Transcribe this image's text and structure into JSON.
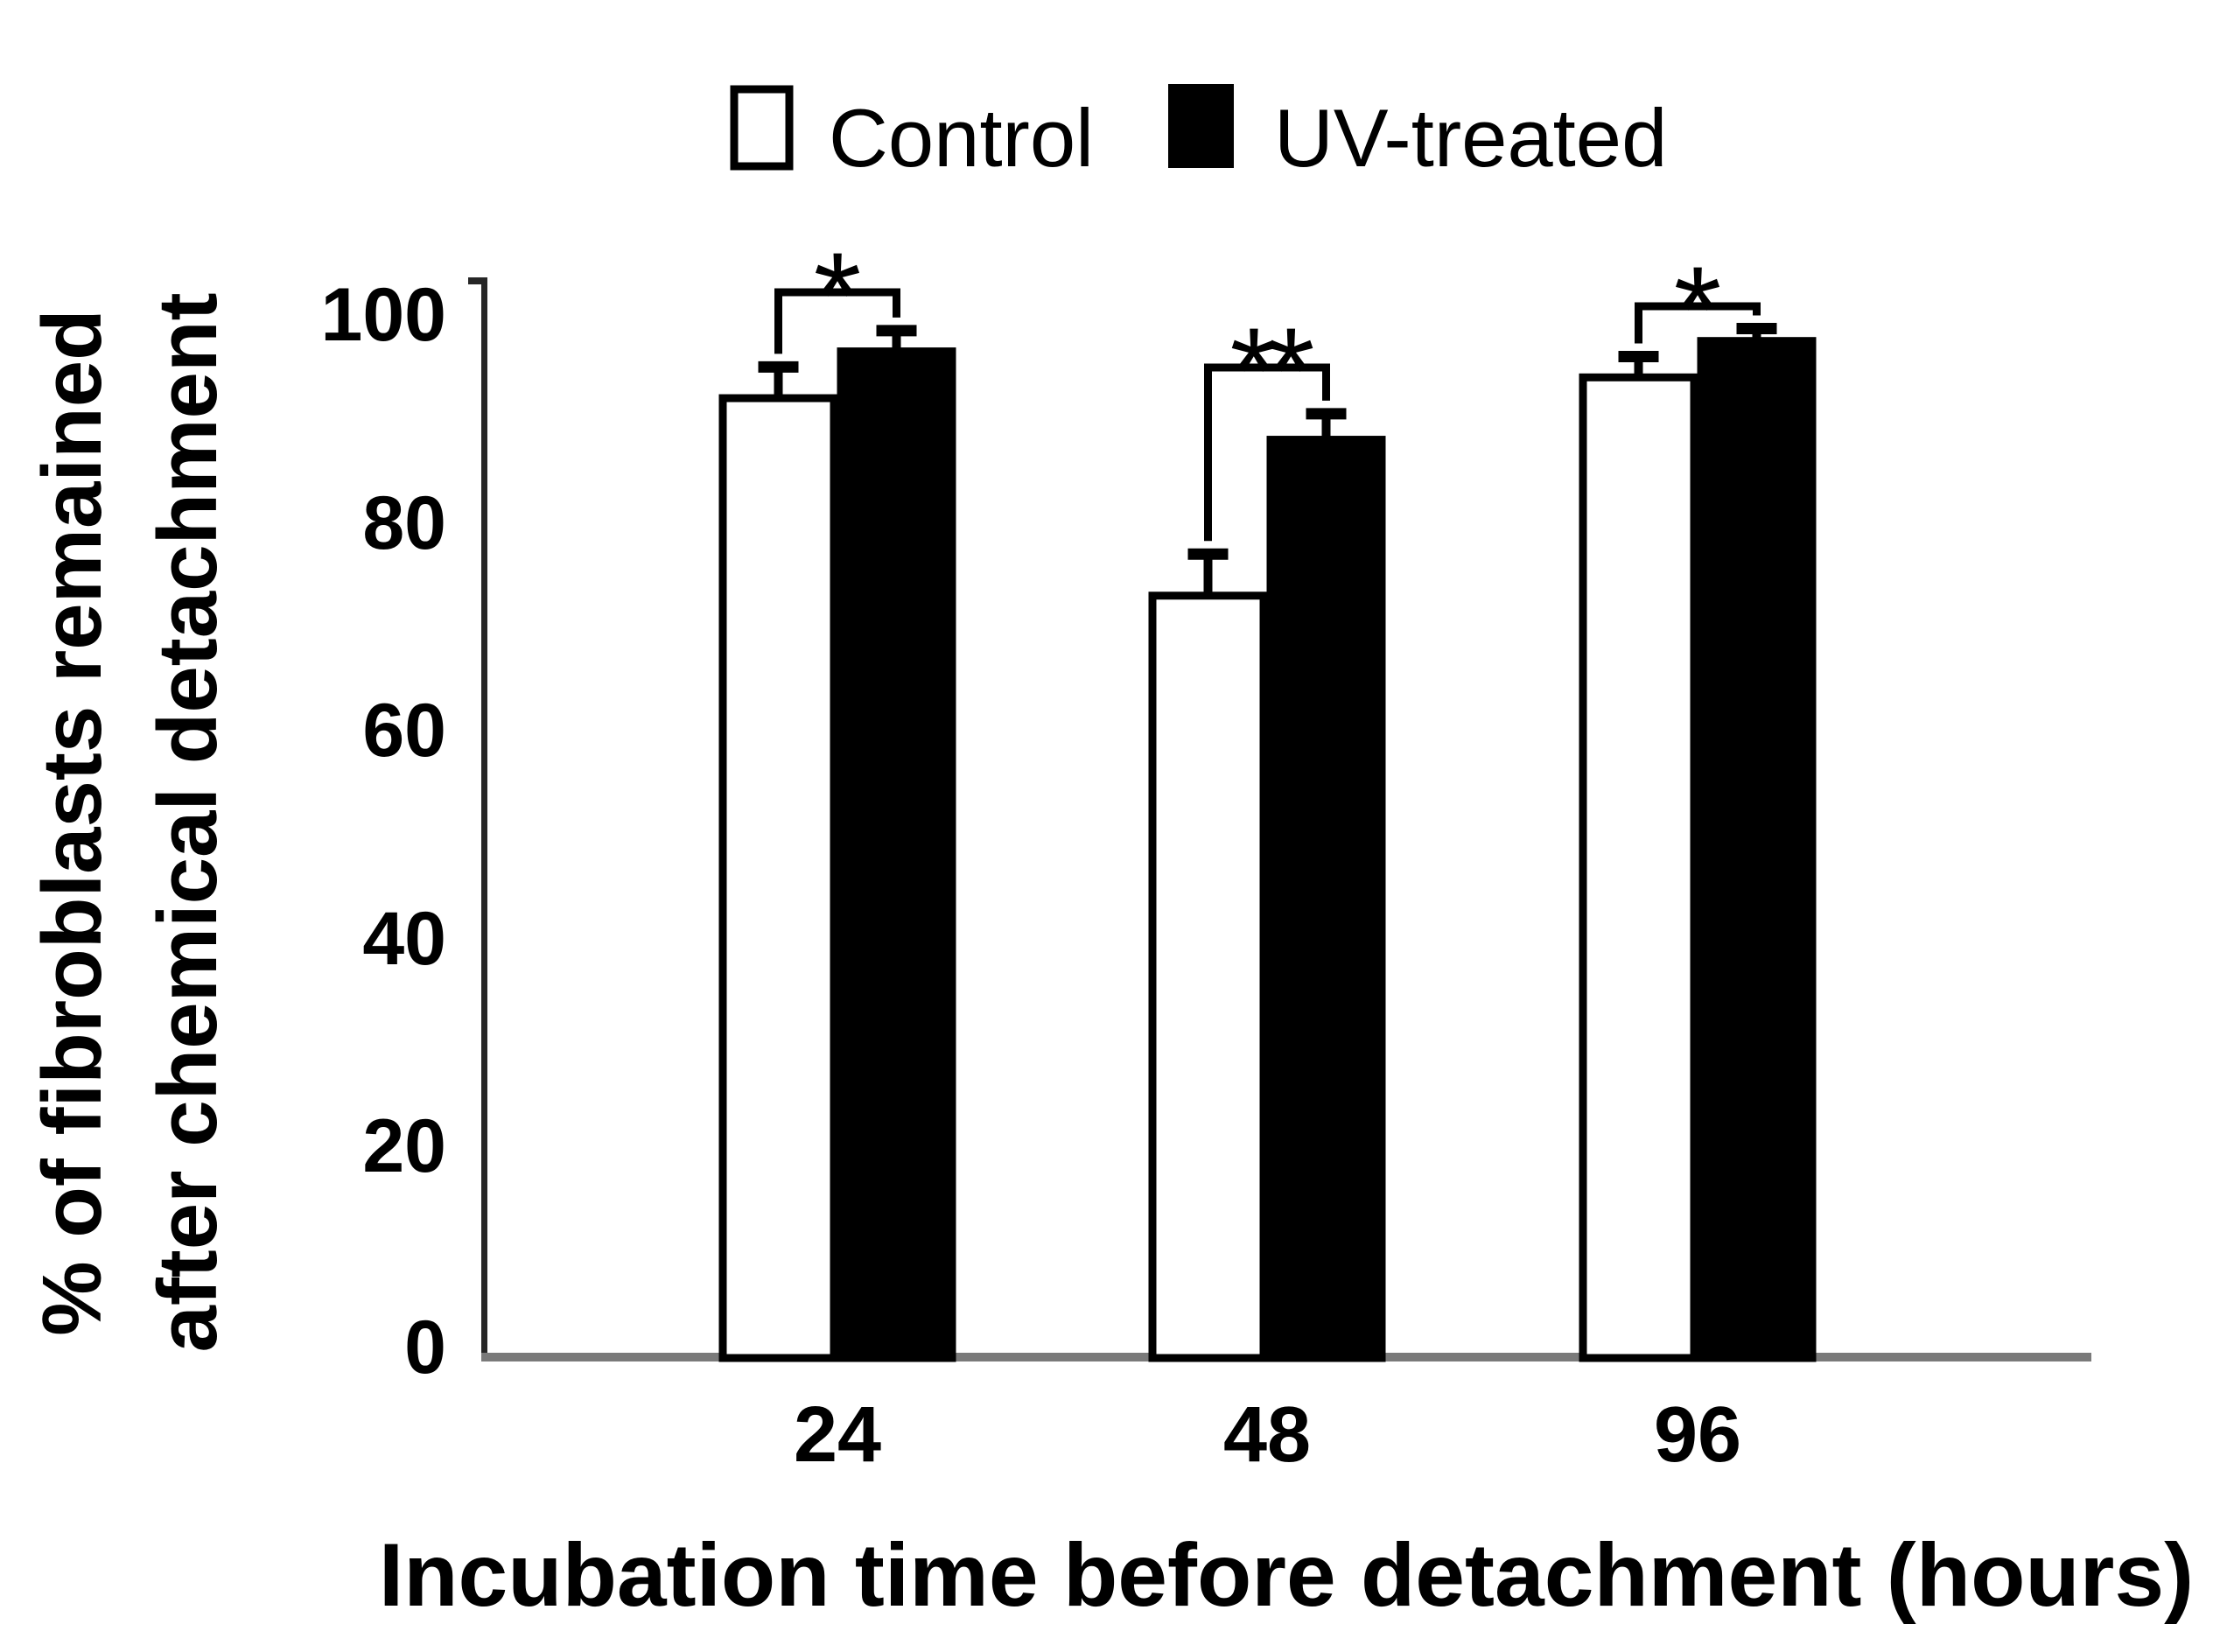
{
  "legend": {
    "items": [
      {
        "label": "Control",
        "swatch": "open-square",
        "fill": "#ffffff"
      },
      {
        "label": "UV-treated",
        "swatch": "filled-square",
        "fill": "#000000"
      }
    ]
  },
  "y_axis": {
    "title_line1": "% of fibroblasts remained",
    "title_line2": "after chemical detachment",
    "ticks": [
      "100",
      "80",
      "60",
      "40",
      "20",
      "0"
    ]
  },
  "x_axis": {
    "title": "Incubation time before detachment (hours)",
    "ticks": [
      "24",
      "48",
      "96"
    ]
  },
  "colors": {
    "background": "#ffffff",
    "bar_stroke": "#000000",
    "control_fill": "#ffffff",
    "uv_fill": "#000000",
    "axis_line": "#262626",
    "baseline": "#7a7a7a"
  },
  "chart_data": {
    "type": "bar",
    "categories": [
      "24",
      "48",
      "96"
    ],
    "series": [
      {
        "name": "Control",
        "values": [
          92,
          73,
          94
        ],
        "errors_plus": [
          3,
          4,
          2
        ],
        "fill": "#ffffff"
      },
      {
        "name": "UV-treated",
        "values": [
          96.5,
          88,
          97.5
        ],
        "errors_plus": [
          2,
          2.5,
          1.2
        ],
        "fill": "#000000"
      }
    ],
    "significance": [
      {
        "category": "24",
        "label": "*"
      },
      {
        "category": "48",
        "label": "**"
      },
      {
        "category": "96",
        "label": "*"
      }
    ],
    "title": "",
    "xlabel": "Incubation time before detachment (hours)",
    "ylabel": "% of fibroblasts remained after chemical detachment",
    "ylim": [
      0,
      100
    ],
    "grid": false,
    "legend_position": "top-center",
    "error_bars": "upper-only"
  }
}
